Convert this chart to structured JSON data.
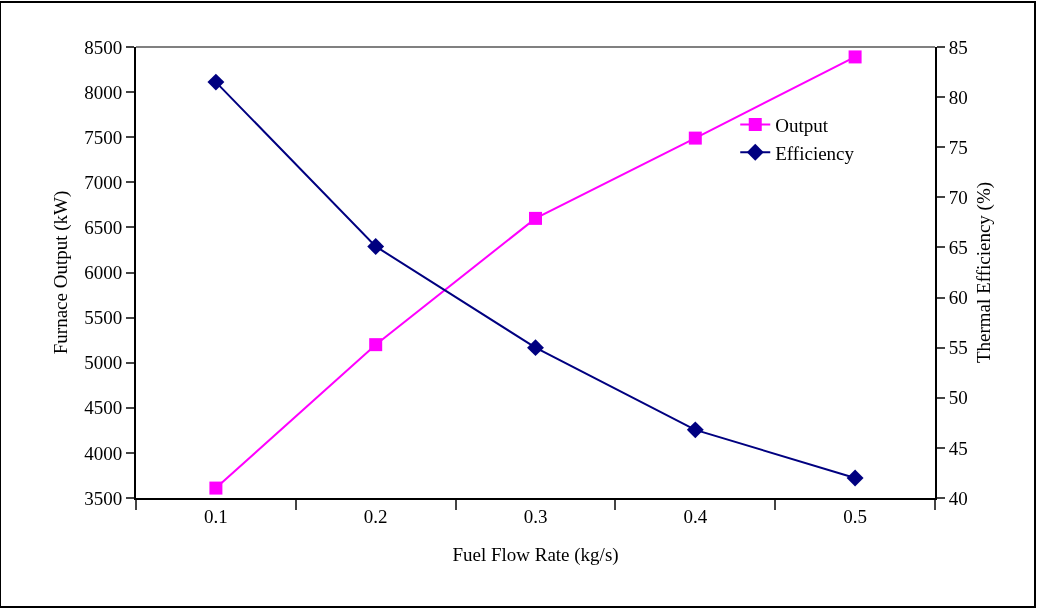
{
  "chart_data": {
    "type": "line",
    "xlabel": "Fuel Flow Rate (kg/s)",
    "ylabel": "Furnace Output (kW)",
    "y2label": "Thermal Efficiency (%)",
    "categories": [
      "0.1",
      "0.2",
      "0.3",
      "0.4",
      "0.5"
    ],
    "series": [
      {
        "name": "Output",
        "color": "#ff00ff",
        "marker": "square",
        "values": [
          3610,
          5200,
          6600,
          7490,
          8390
        ]
      },
      {
        "name": "Efficiency",
        "color": "#000080",
        "marker": "diamond",
        "axis": "y2",
        "values": [
          81.5,
          65.1,
          55,
          46.8,
          42.0
        ]
      }
    ],
    "ylim": [
      3500,
      8500
    ],
    "yticks": [
      3500,
      4000,
      4500,
      5000,
      5500,
      6000,
      6500,
      7000,
      7500,
      8000,
      8500
    ],
    "y2lim": [
      40,
      85
    ],
    "y2ticks": [
      40,
      45,
      50,
      55,
      60,
      65,
      70,
      75,
      80,
      85
    ],
    "grid": false,
    "legend": "top right",
    "line_style": "solid"
  }
}
